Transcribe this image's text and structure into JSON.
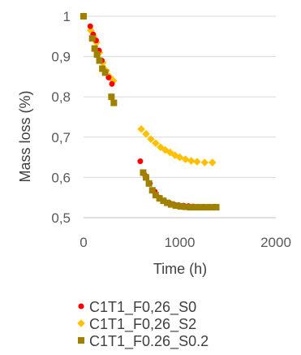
{
  "chart_data": {
    "type": "scatter",
    "xlabel": "Time (h)",
    "ylabel": "Mass loss (%)",
    "xlim": [
      0,
      2000
    ],
    "ylim": [
      0.5,
      1.0
    ],
    "xticks": [
      0,
      1000,
      2000
    ],
    "yticks": [
      0.5,
      0.6,
      0.7,
      0.8,
      0.9,
      1.0
    ],
    "ytick_labels": [
      "0,5",
      "0,6",
      "0,7",
      "0,8",
      "0,9",
      "1"
    ],
    "xtick_labels": [
      "0",
      "1000",
      "2000"
    ],
    "grid": "horizontal",
    "legend_position": "bottom",
    "series": [
      {
        "name": "C1T1_F0,26_S0",
        "color": "#ff0000",
        "marker": "circle",
        "points": [
          [
            0,
            1.0
          ],
          [
            70,
            0.975
          ],
          [
            100,
            0.955
          ],
          [
            130,
            0.94
          ],
          [
            160,
            0.915
          ],
          [
            190,
            0.89
          ],
          [
            225,
            0.862
          ],
          [
            260,
            0.848
          ],
          [
            295,
            0.832
          ],
          [
            590,
            0.64
          ],
          [
            640,
            0.605
          ],
          [
            690,
            0.585
          ],
          [
            740,
            0.565
          ],
          [
            790,
            0.55
          ],
          [
            840,
            0.542
          ],
          [
            890,
            0.537
          ],
          [
            940,
            0.533
          ],
          [
            990,
            0.531
          ],
          [
            1040,
            0.53
          ],
          [
            1090,
            0.529
          ],
          [
            1140,
            0.528
          ],
          [
            1190,
            0.527
          ],
          [
            1250,
            0.527
          ],
          [
            1310,
            0.527
          ],
          [
            1370,
            0.527
          ]
        ]
      },
      {
        "name": "C1T1_F0,26_S2",
        "color": "#ffc000",
        "marker": "diamond",
        "points": [
          [
            0,
            1.0
          ],
          [
            75,
            0.965
          ],
          [
            105,
            0.95
          ],
          [
            135,
            0.935
          ],
          [
            165,
            0.91
          ],
          [
            200,
            0.885
          ],
          [
            235,
            0.865
          ],
          [
            270,
            0.85
          ],
          [
            310,
            0.84
          ],
          [
            600,
            0.72
          ],
          [
            650,
            0.708
          ],
          [
            700,
            0.695
          ],
          [
            750,
            0.685
          ],
          [
            800,
            0.675
          ],
          [
            850,
            0.668
          ],
          [
            900,
            0.662
          ],
          [
            950,
            0.655
          ],
          [
            1000,
            0.65
          ],
          [
            1060,
            0.645
          ],
          [
            1120,
            0.641
          ],
          [
            1180,
            0.639
          ],
          [
            1260,
            0.637
          ],
          [
            1340,
            0.637
          ]
        ]
      },
      {
        "name": "C1T1_F0.26_S0.2",
        "color": "#a08000",
        "marker": "square",
        "points": [
          [
            0,
            1.0
          ],
          [
            90,
            0.945
          ],
          [
            115,
            0.92
          ],
          [
            140,
            0.905
          ],
          [
            165,
            0.89
          ],
          [
            195,
            0.87
          ],
          [
            225,
            0.86
          ],
          [
            290,
            0.8
          ],
          [
            315,
            0.785
          ],
          [
            620,
            0.612
          ],
          [
            650,
            0.6
          ],
          [
            680,
            0.585
          ],
          [
            715,
            0.568
          ],
          [
            750,
            0.556
          ],
          [
            790,
            0.548
          ],
          [
            830,
            0.542
          ],
          [
            870,
            0.537
          ],
          [
            910,
            0.533
          ],
          [
            960,
            0.53
          ],
          [
            1010,
            0.528
          ],
          [
            1060,
            0.527
          ],
          [
            1110,
            0.526
          ],
          [
            1160,
            0.526
          ],
          [
            1210,
            0.526
          ],
          [
            1270,
            0.526
          ],
          [
            1330,
            0.526
          ],
          [
            1380,
            0.526
          ]
        ]
      }
    ]
  }
}
